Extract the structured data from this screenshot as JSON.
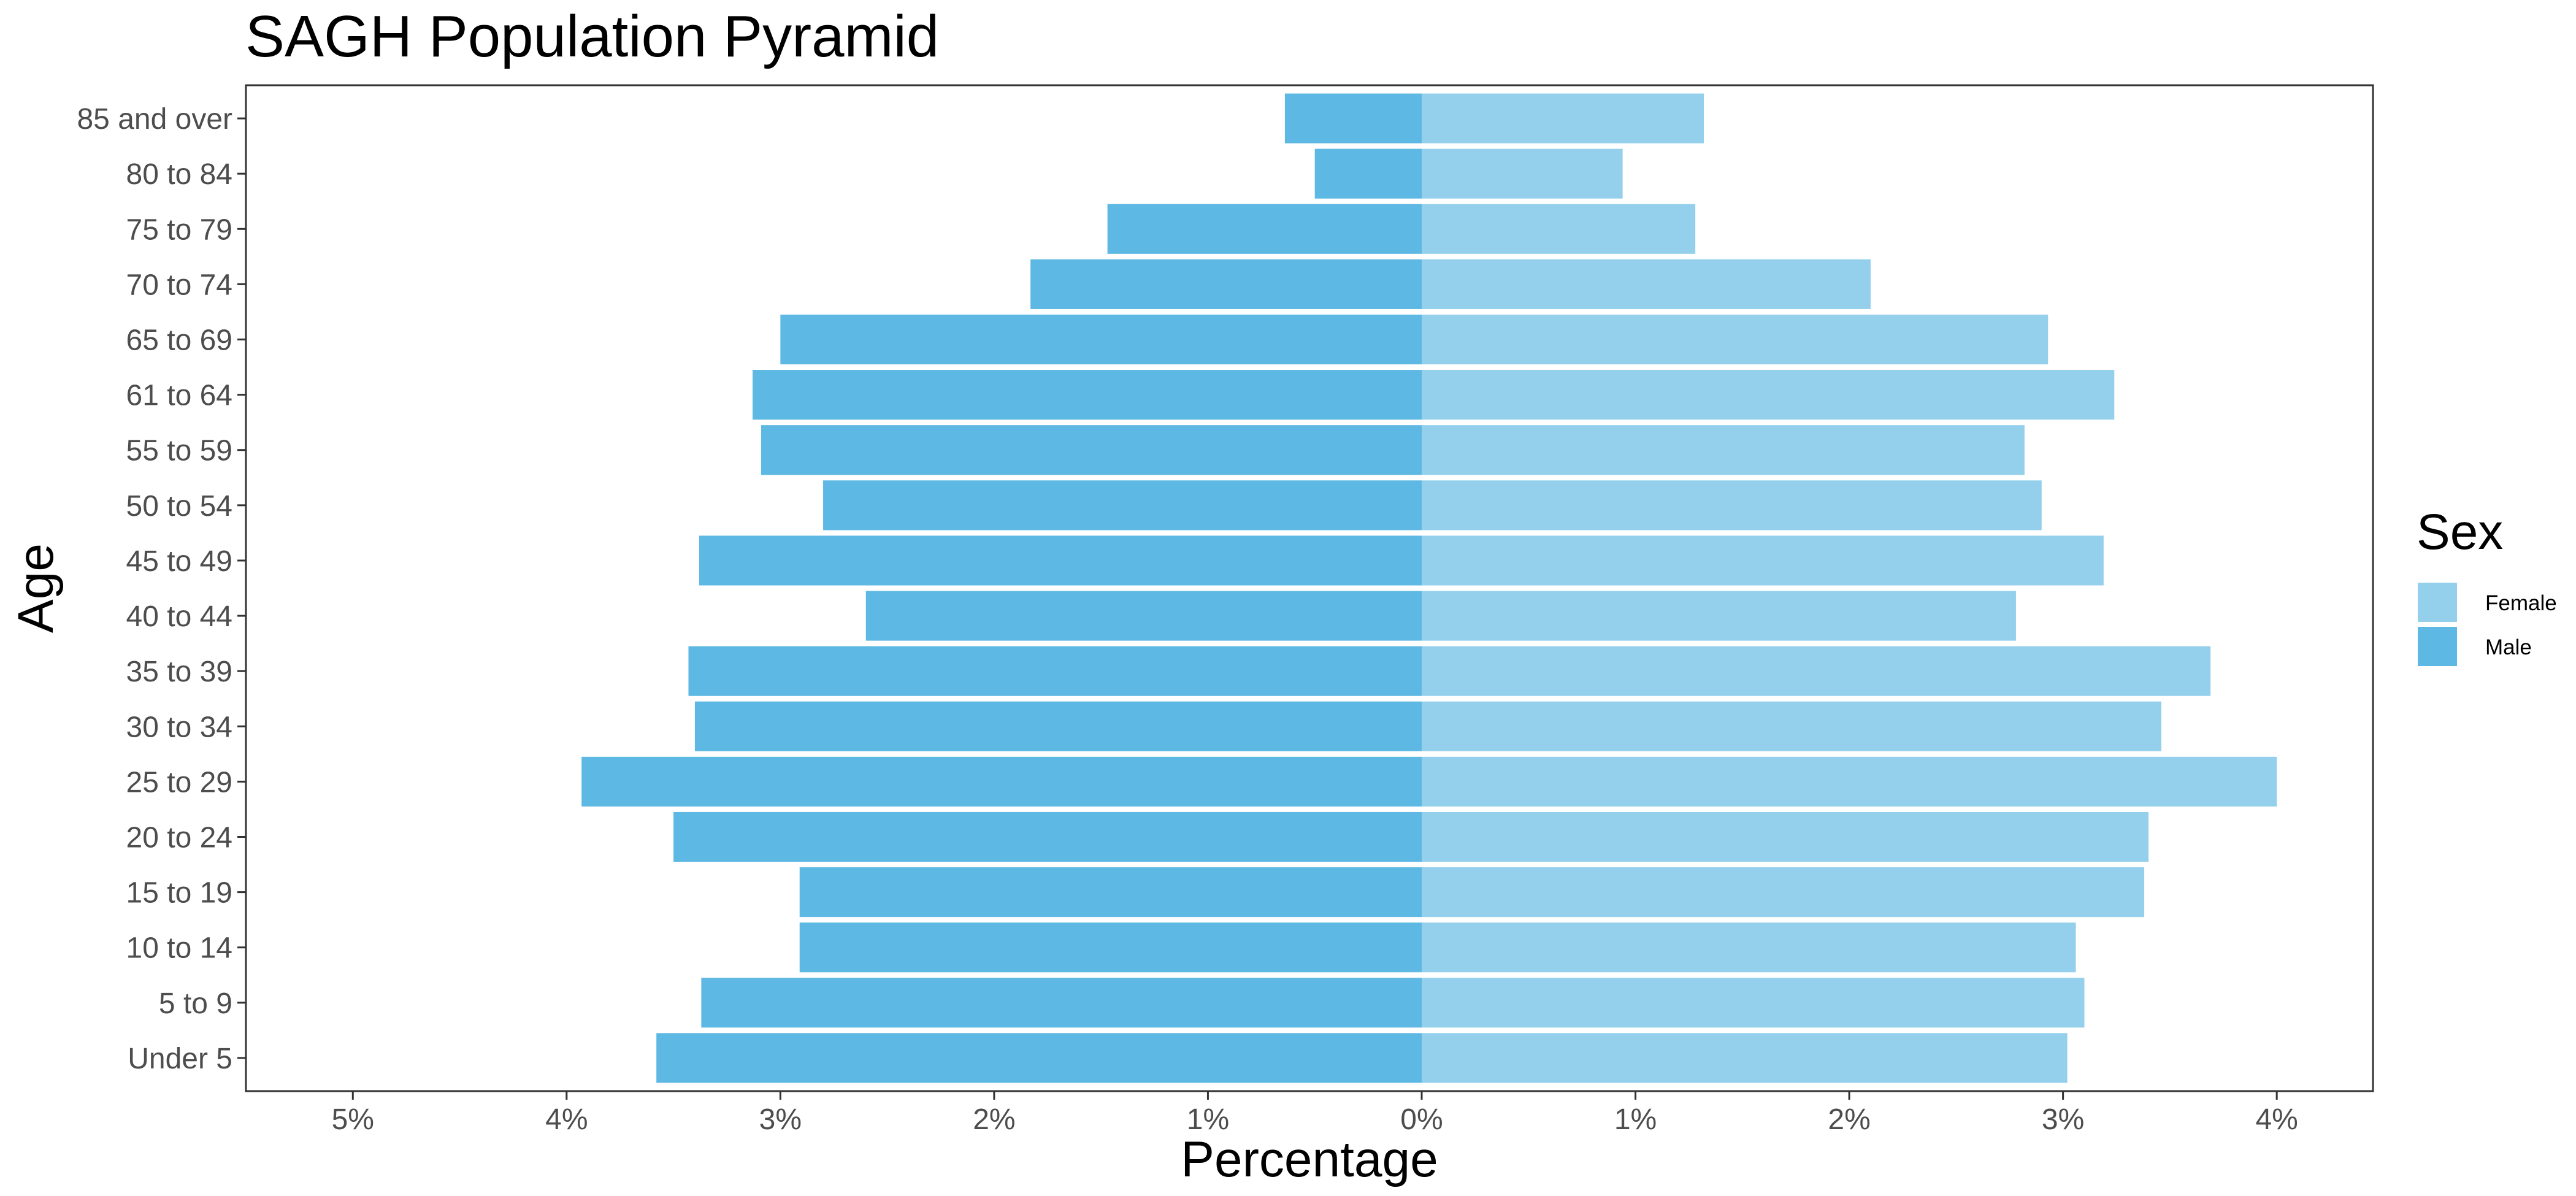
{
  "chart_data": {
    "type": "bar",
    "orientation": "horizontal",
    "title": "SAGH Population Pyramid",
    "xlabel": "Percentage",
    "ylabel": "Age",
    "categories": [
      "Under 5",
      "5 to 9",
      "10 to 14",
      "15 to 19",
      "20 to 24",
      "25 to 29",
      "30 to 34",
      "35 to 39",
      "40 to 44",
      "45 to 49",
      "50 to 54",
      "55 to 59",
      "61 to 64",
      "65 to 69",
      "70 to 74",
      "75 to 79",
      "80 to 84",
      "85 and over"
    ],
    "series": [
      {
        "name": "Female",
        "color": "#94d0ec",
        "values": [
          3.02,
          3.1,
          3.06,
          3.38,
          3.4,
          4.0,
          3.46,
          3.69,
          2.78,
          3.19,
          2.9,
          2.82,
          3.24,
          2.93,
          2.1,
          1.28,
          0.94,
          1.32
        ]
      },
      {
        "name": "Male",
        "color": "#5db8e3",
        "values": [
          -3.58,
          -3.37,
          -2.91,
          -2.91,
          -3.5,
          -3.93,
          -3.4,
          -3.43,
          -2.6,
          -3.38,
          -2.8,
          -3.09,
          -3.13,
          -3.0,
          -1.83,
          -1.47,
          -0.5,
          -0.64
        ]
      }
    ],
    "x_ticks": [
      -5,
      -4,
      -3,
      -2,
      -1,
      0,
      1,
      2,
      3,
      4
    ],
    "x_tick_labels": [
      "5%",
      "4%",
      "3%",
      "2%",
      "1%",
      "0%",
      "1%",
      "2%",
      "3%",
      "4%"
    ],
    "xlim": [
      -5.5,
      4.45
    ],
    "grid": false,
    "legend": {
      "title": "Sex",
      "placement": "right",
      "entries": [
        "Female",
        "Male"
      ]
    }
  }
}
